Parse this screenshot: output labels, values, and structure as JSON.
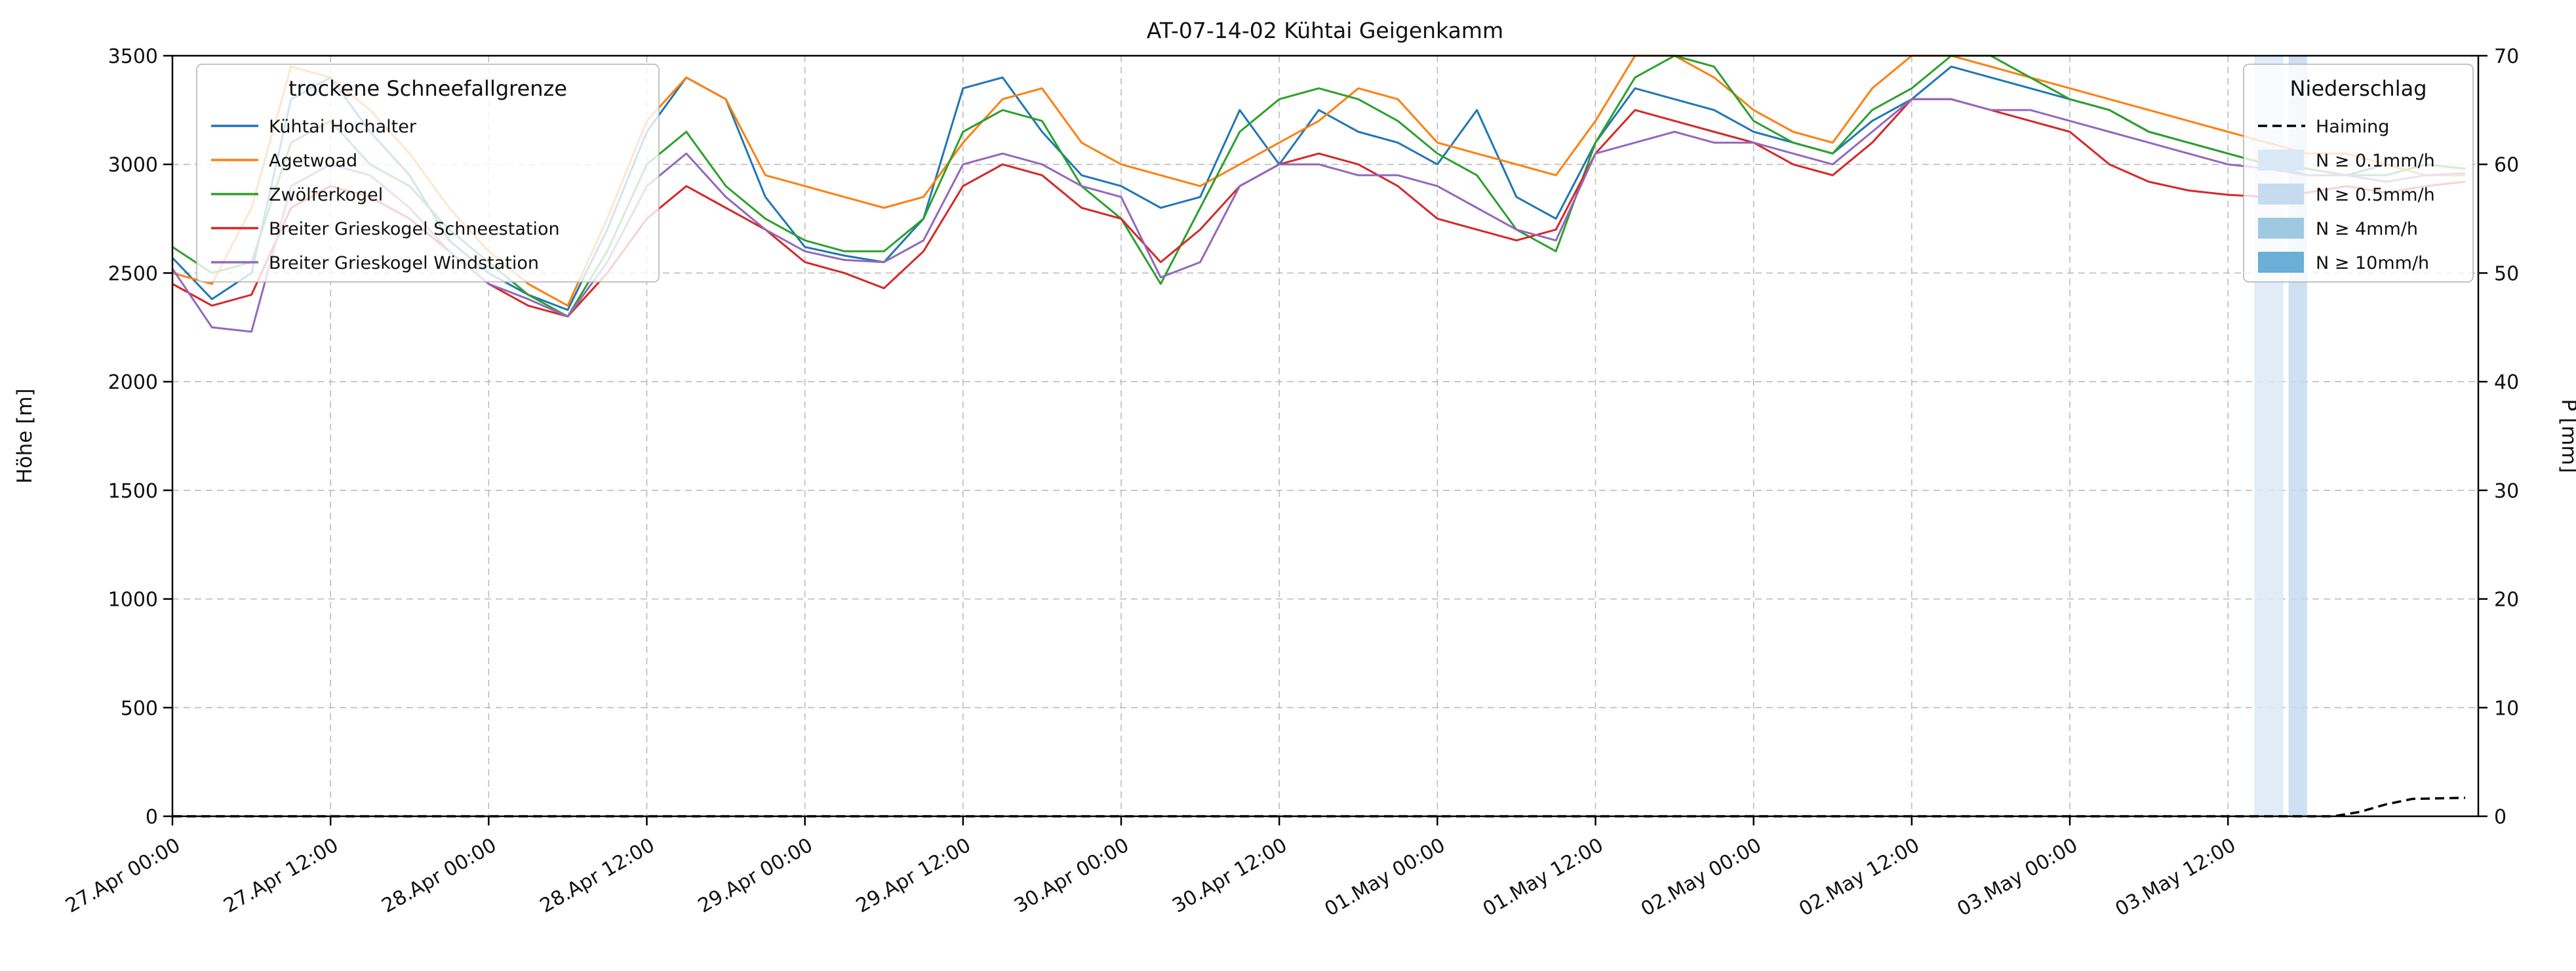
{
  "chart_data": {
    "type": "line",
    "title": "AT-07-14-02 Kühtai Geigenkamm",
    "ylabel_left": "Höhe [m]",
    "ylabel_right": "P [mm]",
    "ylim_left": [
      0,
      3500
    ],
    "ylim_right": [
      0,
      70
    ],
    "xlim_hours": [
      0,
      175
    ],
    "grid": true,
    "x_tick_hours": [
      0,
      12,
      24,
      36,
      48,
      60,
      72,
      84,
      96,
      108,
      120,
      132,
      144,
      156
    ],
    "x_tick_labels": [
      "27.Apr 00:00",
      "27.Apr 12:00",
      "28.Apr 00:00",
      "28.Apr 12:00",
      "29.Apr 00:00",
      "29.Apr 12:00",
      "30.Apr 00:00",
      "30.Apr 12:00",
      "01.May 00:00",
      "01.May 12:00",
      "02.May 00:00",
      "02.May 12:00",
      "03.May 00:00",
      "03.May 12:00"
    ],
    "y_ticks_left": [
      0,
      500,
      1000,
      1500,
      2000,
      2500,
      3000,
      3500
    ],
    "y_ticks_right": [
      0,
      10,
      20,
      30,
      40,
      50,
      60,
      70
    ],
    "legend_snowline_title": "trockene Schneefallgrenze",
    "legend_precip_title": "Niederschlag",
    "x_hours": [
      0,
      3,
      6,
      9,
      12,
      15,
      18,
      21,
      24,
      27,
      30,
      33,
      36,
      39,
      42,
      45,
      48,
      51,
      54,
      57,
      60,
      63,
      66,
      69,
      72,
      75,
      78,
      81,
      84,
      87,
      90,
      93,
      96,
      99,
      102,
      105,
      108,
      111,
      114,
      117,
      120,
      123,
      126,
      129,
      132,
      135,
      138,
      141,
      144,
      147,
      150,
      153,
      156,
      159,
      162,
      165,
      168,
      171,
      174
    ],
    "series": [
      {
        "name": "Kühtai Hochalter",
        "slug": "kuehtai-hochalter",
        "color": "#1f77b4",
        "values": [
          2570,
          2380,
          2500,
          3300,
          3400,
          3150,
          2950,
          2650,
          2500,
          2400,
          2330,
          2700,
          3150,
          3400,
          3300,
          2850,
          2620,
          2580,
          2550,
          2750,
          3350,
          3400,
          3150,
          2950,
          2900,
          2800,
          2850,
          3250,
          3000,
          3250,
          3150,
          3100,
          3000,
          3250,
          2850,
          2750,
          3100,
          3350,
          3300,
          3250,
          3150,
          3100,
          3050,
          3200,
          3300,
          3450,
          3400,
          3350,
          3300,
          3250,
          3150,
          3100,
          3050,
          3000,
          2950,
          2950,
          3000,
          2950,
          2950
        ]
      },
      {
        "name": "Agetwoad",
        "slug": "agetwoad",
        "color": "#ff7f0e",
        "values": [
          2500,
          2450,
          2800,
          3450,
          3400,
          3250,
          3050,
          2800,
          2600,
          2450,
          2350,
          2750,
          3200,
          3400,
          3300,
          2950,
          2900,
          2850,
          2800,
          2850,
          3100,
          3300,
          3350,
          3100,
          3000,
          2950,
          2900,
          3000,
          3100,
          3200,
          3350,
          3300,
          3100,
          3050,
          3000,
          2950,
          3200,
          3500,
          3500,
          3400,
          3250,
          3150,
          3100,
          3350,
          3500,
          3500,
          3450,
          3400,
          3350,
          3300,
          3250,
          3200,
          3150,
          3100,
          3050,
          3050,
          3000,
          2950,
          2950
        ]
      },
      {
        "name": "Zwölferkogel",
        "slug": "zwoelferkogel",
        "color": "#2ca02c",
        "values": [
          2620,
          2500,
          2550,
          3100,
          3200,
          3000,
          2900,
          2700,
          2550,
          2400,
          2300,
          2600,
          3000,
          3150,
          2900,
          2750,
          2650,
          2600,
          2600,
          2750,
          3150,
          3250,
          3200,
          2900,
          2750,
          2450,
          2800,
          3150,
          3300,
          3350,
          3300,
          3200,
          3050,
          2950,
          2700,
          2600,
          3100,
          3400,
          3500,
          3450,
          3200,
          3100,
          3050,
          3250,
          3350,
          3500,
          3500,
          3400,
          3300,
          3250,
          3150,
          3100,
          3050,
          3000,
          2980,
          2950,
          2950,
          3000,
          2980
        ]
      },
      {
        "name": "Breiter Grieskogel Schneestation",
        "slug": "breiter-grieskogel-schneestation",
        "color": "#d62728",
        "values": [
          2450,
          2350,
          2400,
          2800,
          2900,
          2850,
          2750,
          2600,
          2450,
          2350,
          2300,
          2500,
          2750,
          2900,
          2800,
          2700,
          2550,
          2500,
          2430,
          2600,
          2900,
          3000,
          2950,
          2800,
          2750,
          2550,
          2700,
          2900,
          3000,
          3050,
          3000,
          2900,
          2750,
          2700,
          2650,
          2700,
          3050,
          3250,
          3200,
          3150,
          3100,
          3000,
          2950,
          3100,
          3300,
          3300,
          3250,
          3200,
          3150,
          3000,
          2920,
          2880,
          2860,
          2850,
          2870,
          2900,
          2870,
          2900,
          2920
        ]
      },
      {
        "name": "Breiter Grieskogel Windstation",
        "slug": "breiter-grieskogel-windstation",
        "color": "#9467bd",
        "values": [
          2520,
          2250,
          2230,
          2900,
          3000,
          2950,
          2800,
          2600,
          2450,
          2380,
          2300,
          2550,
          2900,
          3050,
          2850,
          2700,
          2600,
          2560,
          2550,
          2650,
          3000,
          3050,
          3000,
          2900,
          2850,
          2480,
          2550,
          2900,
          3000,
          3000,
          2950,
          2950,
          2900,
          2800,
          2700,
          2650,
          3050,
          3100,
          3150,
          3100,
          3100,
          3050,
          3000,
          3150,
          3300,
          3300,
          3250,
          3250,
          3200,
          3150,
          3100,
          3050,
          3000,
          2980,
          2950,
          2950,
          2920,
          2950,
          2960
        ]
      }
    ],
    "haiming": {
      "name": "Haiming",
      "color": "#000000",
      "x_hours": [
        0,
        120,
        160,
        164,
        166,
        168,
        170,
        174
      ],
      "p_mm": [
        0,
        0,
        0,
        0,
        0.4,
        1.1,
        1.6,
        1.7
      ]
    },
    "precip_levels": [
      {
        "label": "N ≥ 0.1mm/h",
        "color": "#dbe9f6"
      },
      {
        "label": "N ≥ 0.5mm/h",
        "color": "#c6dbef"
      },
      {
        "label": "N ≥ 4mm/h",
        "color": "#9ecae1"
      },
      {
        "label": "N ≥ 10mm/h",
        "color": "#6baed6"
      }
    ],
    "precip_bands": [
      {
        "from_hour": 158,
        "to_hour": 160.2,
        "level": 0
      },
      {
        "from_hour": 160.6,
        "to_hour": 162,
        "level": 1
      }
    ]
  }
}
